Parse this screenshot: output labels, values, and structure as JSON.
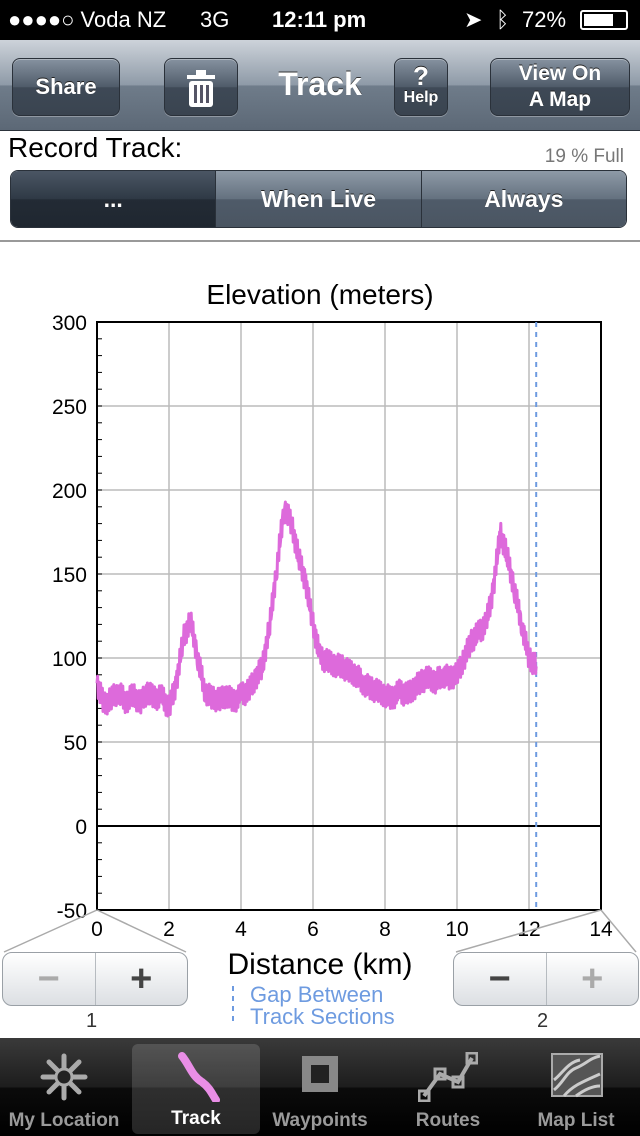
{
  "status": {
    "carrier": "●●●●○ Voda NZ",
    "network": "3G",
    "time": "12:11 pm",
    "battery": "72%"
  },
  "nav": {
    "share": "Share",
    "title": "Track",
    "help_q": "?",
    "help": "Help",
    "view_map_line1": "View On",
    "view_map_line2": "A Map"
  },
  "record": {
    "label": "Record Track:",
    "full": "19 % Full",
    "options": [
      "...",
      "When Live",
      "Always"
    ],
    "selected": 0
  },
  "chart_data": {
    "type": "line",
    "title": "Elevation (meters)",
    "xlabel": "Distance (km)",
    "ylabel": "",
    "xlim": [
      0,
      14
    ],
    "ylim": [
      -50,
      300
    ],
    "x_ticks": [
      "0",
      "2",
      "4",
      "6",
      "8",
      "10",
      "12",
      "14"
    ],
    "y_ticks": [
      "300",
      "250",
      "200",
      "150",
      "100",
      "50",
      "0",
      "-50"
    ],
    "grid": true,
    "gap_marker_x": 12.2,
    "gap_legend": [
      "Gap Between",
      "Track Sections"
    ],
    "series": [
      {
        "color": "#dd6adb",
        "x": [
          0,
          0.2,
          0.4,
          0.6,
          0.8,
          1.0,
          1.2,
          1.4,
          1.6,
          1.8,
          2.0,
          2.2,
          2.4,
          2.6,
          2.8,
          3.0,
          3.2,
          3.4,
          3.6,
          3.8,
          4.0,
          4.2,
          4.4,
          4.6,
          4.8,
          5.0,
          5.2,
          5.4,
          5.6,
          5.8,
          6.0,
          6.2,
          6.4,
          6.6,
          6.8,
          7.0,
          7.2,
          7.4,
          7.6,
          7.8,
          8.0,
          8.2,
          8.4,
          8.6,
          8.8,
          9.0,
          9.2,
          9.4,
          9.6,
          9.8,
          10.0,
          10.2,
          10.4,
          10.6,
          10.8,
          11.0,
          11.2,
          11.4,
          11.6,
          11.8,
          12.0,
          12.2
        ],
        "values": [
          85,
          72,
          76,
          80,
          74,
          78,
          73,
          80,
          76,
          77,
          70,
          85,
          112,
          122,
          100,
          80,
          76,
          75,
          78,
          74,
          78,
          80,
          88,
          95,
          120,
          155,
          190,
          180,
          160,
          145,
          120,
          100,
          98,
          96,
          95,
          92,
          90,
          85,
          82,
          80,
          78,
          76,
          80,
          78,
          82,
          86,
          88,
          86,
          90,
          88,
          90,
          100,
          110,
          115,
          120,
          140,
          175,
          160,
          140,
          120,
          100,
          95
        ]
      }
    ]
  },
  "zoom": [
    {
      "minus": "−",
      "plus": "+",
      "label": "1"
    },
    {
      "minus": "−",
      "plus": "+",
      "label": "2"
    }
  ],
  "tabs": [
    {
      "label": "My Location",
      "icon": "sun-icon"
    },
    {
      "label": "Track",
      "icon": "track-icon"
    },
    {
      "label": "Waypoints",
      "icon": "square-icon"
    },
    {
      "label": "Routes",
      "icon": "route-icon"
    },
    {
      "label": "Map List",
      "icon": "map-icon"
    }
  ],
  "selected_tab": 1
}
